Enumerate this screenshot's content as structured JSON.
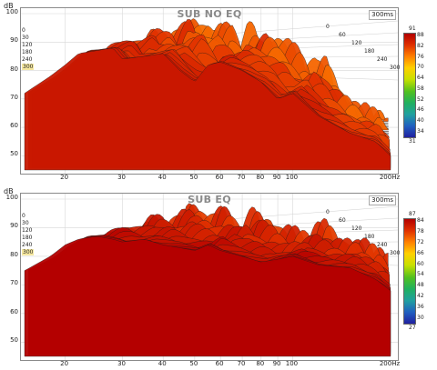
{
  "panels": [
    {
      "id": "sub_no_eq",
      "title": "SUB NO EQ",
      "time_label": "300ms",
      "y_unit": "dB",
      "y_ticks": [
        "100",
        "90",
        "80",
        "70",
        "60",
        "50"
      ],
      "x_ticks": [
        "20",
        "30",
        "40",
        "50",
        "60",
        "70",
        "80",
        "90",
        "100",
        "200Hz"
      ],
      "slice_left_labels": [
        "0",
        "30",
        "120",
        "180",
        "240",
        "300"
      ],
      "slice_right_labels": [
        "0",
        "60",
        "120",
        "180",
        "240",
        "300"
      ],
      "colorbar": {
        "max": "91",
        "min": "31",
        "ticks": [
          "88",
          "82",
          "76",
          "70",
          "64",
          "58",
          "52",
          "46",
          "40",
          "34"
        ]
      }
    },
    {
      "id": "sub_eq",
      "title": "SUB EQ",
      "time_label": "300ms",
      "y_unit": "dB",
      "y_ticks": [
        "100",
        "90",
        "80",
        "70",
        "60",
        "50"
      ],
      "x_ticks": [
        "20",
        "30",
        "40",
        "50",
        "60",
        "70",
        "80",
        "90",
        "100",
        "200Hz"
      ],
      "slice_left_labels": [
        "0",
        "30",
        "120",
        "180",
        "240",
        "300"
      ],
      "slice_right_labels": [
        "0",
        "60",
        "120",
        "180",
        "240",
        "300"
      ],
      "colorbar": {
        "max": "87",
        "min": "27",
        "ticks": [
          "84",
          "78",
          "72",
          "66",
          "60",
          "54",
          "48",
          "42",
          "36",
          "30"
        ]
      }
    }
  ],
  "colors": {
    "scale": [
      "#b30000",
      "#e03000",
      "#ff8000",
      "#ffd000",
      "#c8e000",
      "#50c020",
      "#20b060",
      "#20a0a0",
      "#2060c0",
      "#2020a0"
    ],
    "gridline": "#d8d8d8",
    "frame": "#8a8a8a"
  },
  "chart_data": [
    {
      "type": "area",
      "title": "SUB NO EQ",
      "ylabel": "dB",
      "xscale": "log",
      "xlim": [
        15,
        200
      ],
      "ylim": [
        45,
        100
      ],
      "z_axis": "time (ms)",
      "zlim": [
        0,
        300
      ],
      "color_range_db": [
        31,
        91
      ],
      "series": [
        {
          "name": "0",
          "x": [
            15,
            18,
            20,
            22,
            25,
            28,
            30,
            35,
            40,
            45,
            50,
            55,
            60,
            70,
            80,
            90,
            100,
            120,
            150,
            180,
            200
          ],
          "values": [
            72,
            78,
            82,
            86,
            87,
            88,
            84,
            85,
            86,
            80,
            76,
            82,
            83,
            80,
            76,
            70,
            72,
            64,
            58,
            55,
            50
          ]
        }
      ]
    },
    {
      "type": "area",
      "title": "SUB EQ",
      "ylabel": "dB",
      "xscale": "log",
      "xlim": [
        15,
        200
      ],
      "ylim": [
        45,
        100
      ],
      "z_axis": "time (ms)",
      "zlim": [
        0,
        300
      ],
      "color_range_db": [
        27,
        87
      ],
      "series": [
        {
          "name": "0",
          "x": [
            15,
            18,
            20,
            22,
            25,
            28,
            30,
            35,
            40,
            45,
            50,
            55,
            60,
            70,
            80,
            90,
            100,
            120,
            150,
            180,
            200
          ],
          "values": [
            75,
            80,
            84,
            86,
            87,
            86,
            85,
            86,
            84,
            83,
            82,
            84,
            82,
            80,
            78,
            79,
            80,
            77,
            76,
            72,
            68
          ]
        }
      ]
    }
  ]
}
